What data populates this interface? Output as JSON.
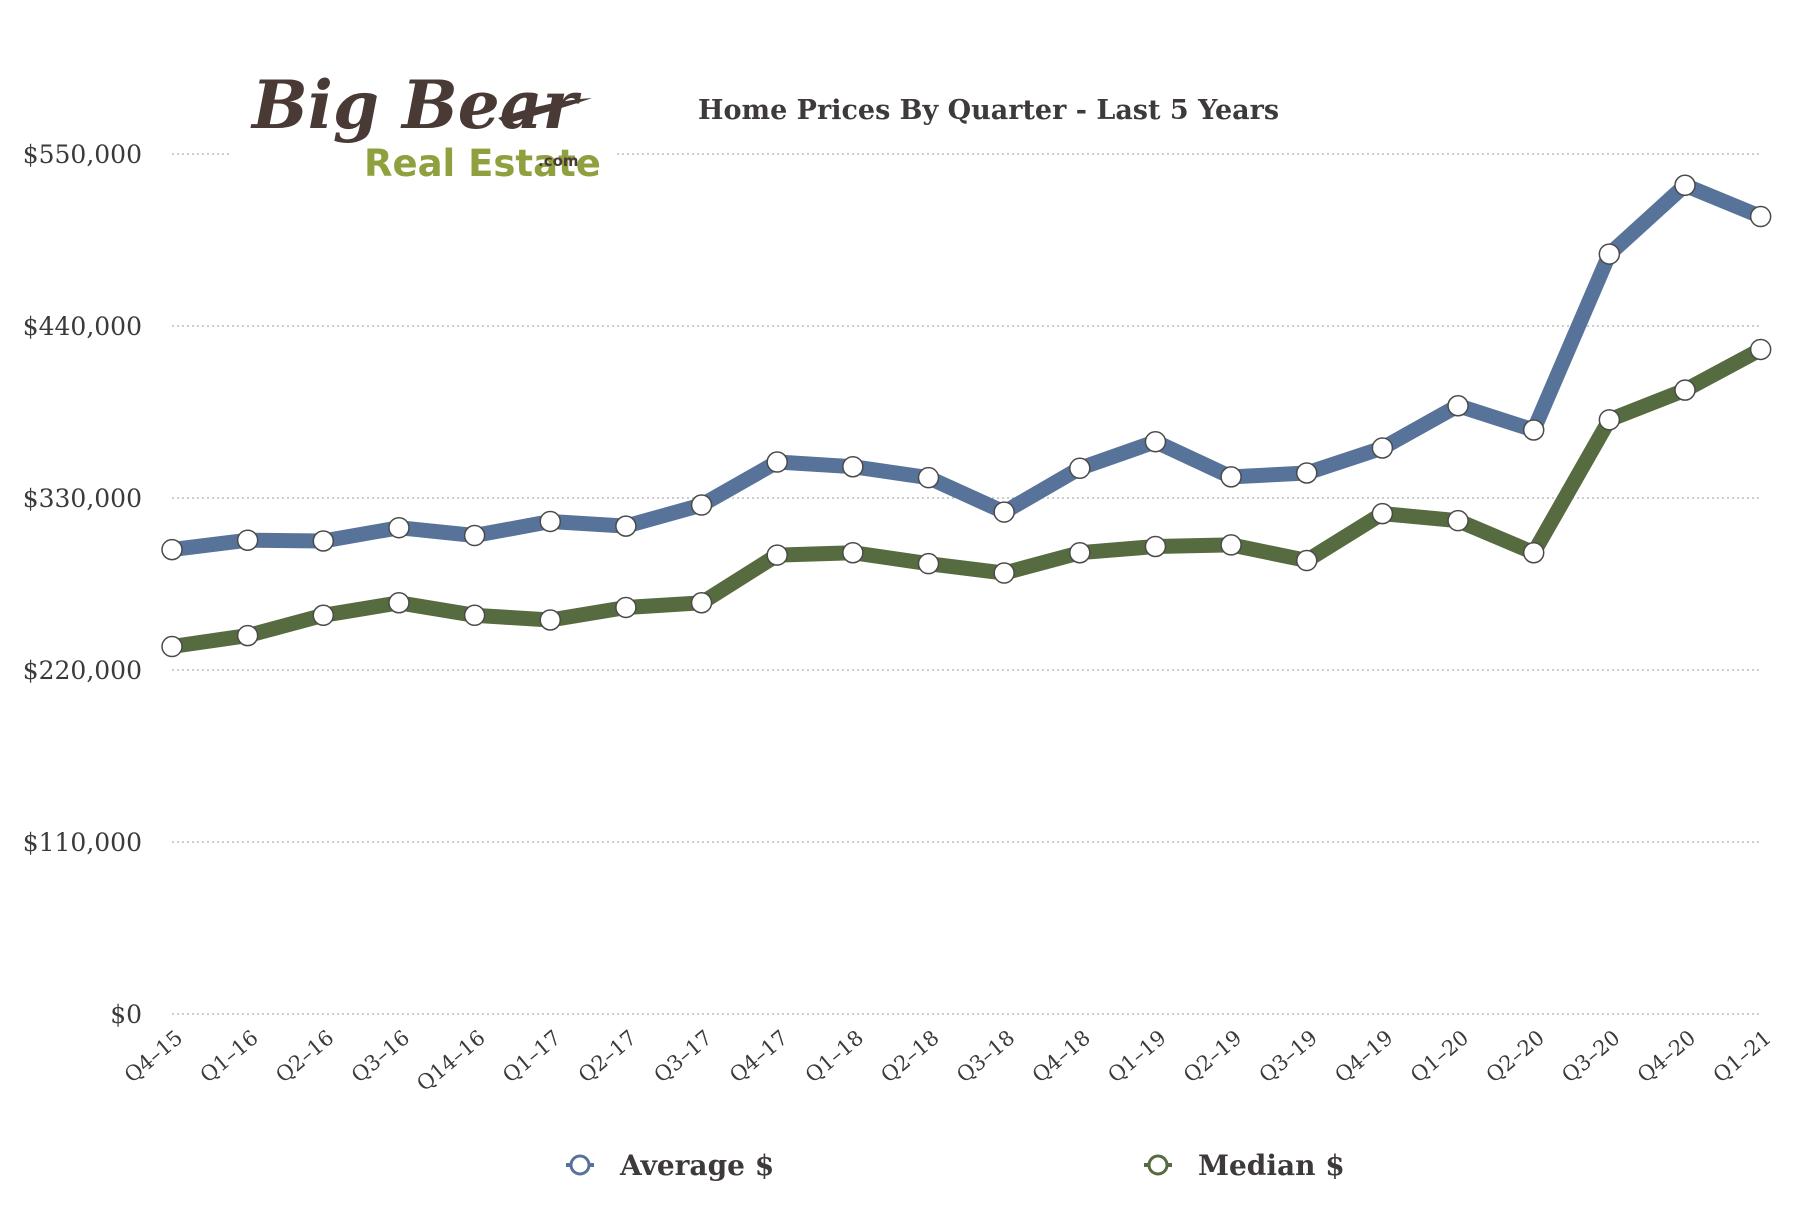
{
  "logo": {
    "big": "Big Bear",
    "real_estate": "Real Estate",
    "com": ".com"
  },
  "chart_data": {
    "type": "line",
    "title": "Home Prices By Quarter - Last 5 Years",
    "xlabel": "",
    "ylabel": "",
    "categories": [
      "Q4–15",
      "Q1–16",
      "Q2–16",
      "Q3–16",
      "Q14–16",
      "Q1–17",
      "Q2–17",
      "Q3–17",
      "Q4–17",
      "Q1–18",
      "Q2–18",
      "Q3–18",
      "Q4–18",
      "Q1–19",
      "Q2–19",
      "Q3–19",
      "Q4–19",
      "Q1–20",
      "Q2–20",
      "Q3–20",
      "Q4–20",
      "Q1–21"
    ],
    "ylim": [
      0,
      550000
    ],
    "yticks": [
      0,
      110000,
      220000,
      330000,
      440000,
      550000
    ],
    "ytick_labels": [
      "$0",
      "$110,000",
      "$220,000",
      "$330,000",
      "$440,000",
      "$550,000"
    ],
    "grid": true,
    "legend": "bottom",
    "series": [
      {
        "name": "Average $",
        "color": "#587399",
        "values": [
          297000,
          303000,
          302500,
          311000,
          306000,
          315000,
          312000,
          325500,
          353000,
          350000,
          343000,
          321000,
          349000,
          366000,
          343500,
          346000,
          362000,
          389000,
          373500,
          486000,
          530000,
          510000
        ]
      },
      {
        "name": "Median $",
        "color": "#566b3f",
        "values": [
          235000,
          242000,
          255000,
          263000,
          255000,
          252000,
          260000,
          263000,
          293500,
          295000,
          288000,
          282000,
          295000,
          299000,
          300000,
          290000,
          320000,
          315500,
          295000,
          380000,
          399000,
          425000
        ]
      }
    ]
  }
}
